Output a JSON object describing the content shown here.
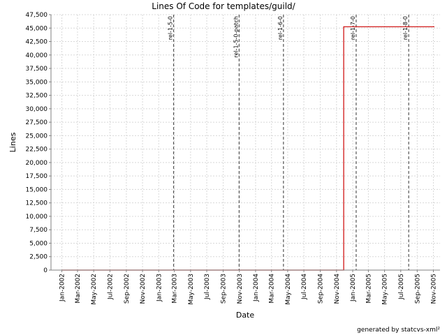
{
  "chart_data": {
    "type": "line",
    "title": "Lines Of Code for templates/guild/",
    "xlabel": "Date",
    "ylabel": "Lines",
    "ylim": [
      0,
      47500
    ],
    "xlim": [
      "2001-11-21",
      "2005-11-26"
    ],
    "grid": true,
    "line_color": "#cc0000",
    "yticks": [
      0,
      2500,
      5000,
      7500,
      10000,
      12500,
      15000,
      17500,
      20000,
      22500,
      25000,
      27500,
      30000,
      32500,
      35000,
      37500,
      40000,
      42500,
      45000,
      47500
    ],
    "ytick_labels": [
      "0",
      "2,500",
      "5,000",
      "7,500",
      "10,000",
      "12,500",
      "15,000",
      "17,500",
      "20,000",
      "22,500",
      "25,000",
      "27,500",
      "30,000",
      "32,500",
      "35,000",
      "37,500",
      "40,000",
      "42,500",
      "45,000",
      "47,500"
    ],
    "xticks": [
      {
        "date": "2002-01-01",
        "label": "Jan-2002"
      },
      {
        "date": "2002-03-01",
        "label": "Mar-2002"
      },
      {
        "date": "2002-05-01",
        "label": "May-2002"
      },
      {
        "date": "2002-07-01",
        "label": "Jul-2002"
      },
      {
        "date": "2002-09-01",
        "label": "Sep-2002"
      },
      {
        "date": "2002-11-01",
        "label": "Nov-2002"
      },
      {
        "date": "2003-01-01",
        "label": "Jan-2003"
      },
      {
        "date": "2003-03-01",
        "label": "Mar-2003"
      },
      {
        "date": "2003-05-01",
        "label": "May-2003"
      },
      {
        "date": "2003-07-01",
        "label": "Jul-2003"
      },
      {
        "date": "2003-09-01",
        "label": "Sep-2003"
      },
      {
        "date": "2003-11-01",
        "label": "Nov-2003"
      },
      {
        "date": "2004-01-01",
        "label": "Jan-2004"
      },
      {
        "date": "2004-03-01",
        "label": "Mar-2004"
      },
      {
        "date": "2004-05-01",
        "label": "May-2004"
      },
      {
        "date": "2004-07-01",
        "label": "Jul-2004"
      },
      {
        "date": "2004-09-01",
        "label": "Sep-2004"
      },
      {
        "date": "2004-11-01",
        "label": "Nov-2004"
      },
      {
        "date": "2005-01-01",
        "label": "Jan-2005"
      },
      {
        "date": "2005-03-01",
        "label": "Mar-2005"
      },
      {
        "date": "2005-05-01",
        "label": "May-2005"
      },
      {
        "date": "2005-07-01",
        "label": "Jul-2005"
      },
      {
        "date": "2005-09-01",
        "label": "Sep-2005"
      },
      {
        "date": "2005-11-01",
        "label": "Nov-2005"
      }
    ],
    "series": [
      {
        "points": [
          {
            "x": "2002-01-01",
            "y": 0
          },
          {
            "x": "2004-11-28",
            "y": 0
          },
          {
            "x": "2004-11-28",
            "y": 45250
          },
          {
            "x": "2005-11-05",
            "y": 45250
          }
        ]
      }
    ],
    "markers": [
      {
        "date": "2003-02-26",
        "label": "rel-1-5-0"
      },
      {
        "date": "2003-10-31",
        "label": "rel-1-5-0-patch"
      },
      {
        "date": "2004-04-15",
        "label": "rel-1-6-0"
      },
      {
        "date": "2005-01-14",
        "label": "rel-1-7-0"
      },
      {
        "date": "2005-07-31",
        "label": "rel-1-8-0"
      }
    ]
  },
  "footer": "generated by statcvs-xml²"
}
